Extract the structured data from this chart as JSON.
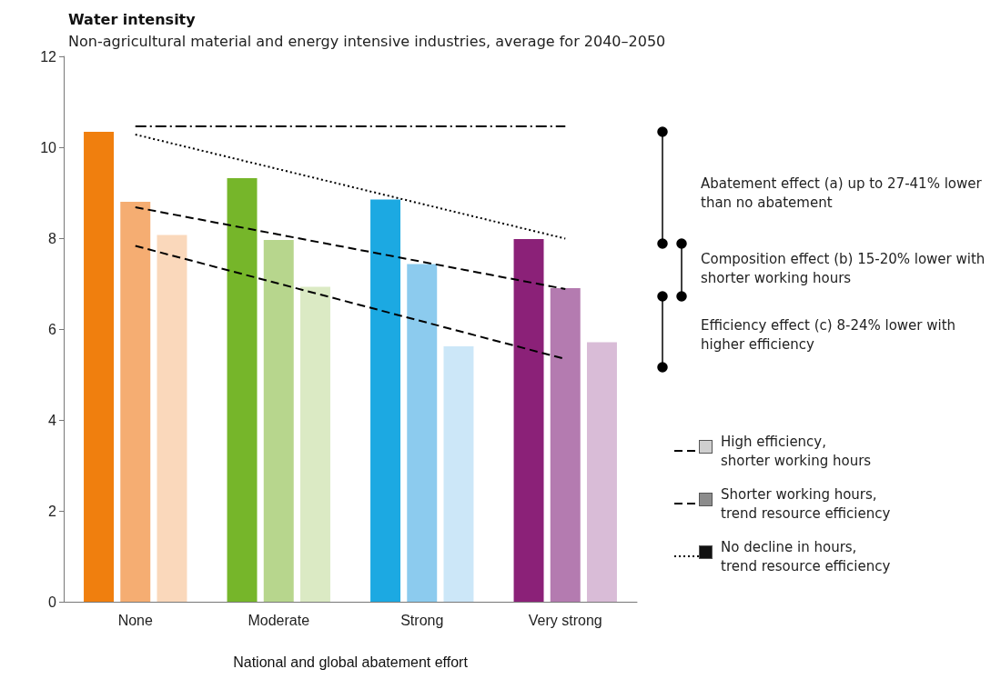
{
  "chart_data": {
    "title": "Water intensity",
    "subtitle": "Non-agricultural material and energy intensive industries, average for 2040–2050",
    "xlabel": "National and global abatement effort",
    "categories": [
      "None",
      "Moderate",
      "Strong",
      "Very strong"
    ],
    "series": [
      {
        "type": "line",
        "name": "High efficiency, shorter working hours",
        "color": "#000000",
        "line_style": "dashed",
        "values": [
          7.83,
          null,
          null,
          5.34
        ]
      },
      {
        "type": "line",
        "name": "Shorter working hours, trend resource efficiency",
        "color": "#000000",
        "line_style": "dashed",
        "values": [
          8.68,
          null,
          null,
          6.88
        ]
      },
      {
        "type": "line",
        "name": "No decline in hours, trend resource efficiency",
        "color": "#000000",
        "line_style": "dotted",
        "values": [
          10.28,
          null,
          null,
          7.99
        ]
      },
      {
        "type": "line",
        "color": "#000000",
        "line_style": "dashdot",
        "values": [
          10.46,
          null,
          null,
          10.46
        ]
      },
      {
        "colors": [
          "#f07f0e",
          "#76b62a",
          "#1ca9e2",
          "#8b2178"
        ],
        "values": [
          10.34,
          9.32,
          8.85,
          7.98
        ]
      },
      {
        "colors": [
          "#f5ad72",
          "#b7d68d",
          "#8ccbee",
          "#b47bb0"
        ],
        "values": [
          8.8,
          7.96,
          7.43,
          6.9
        ]
      },
      {
        "colors": [
          "#fad8bb",
          "#dbeac4",
          "#cce7f8",
          "#d9bcd7"
        ],
        "values": [
          8.07,
          6.93,
          5.62,
          5.71
        ]
      }
    ],
    "ylim": [
      0,
      12
    ],
    "yticks": [
      0,
      2,
      4,
      6,
      8,
      10,
      12
    ],
    "grid": false,
    "type": "bar",
    "legend": "bottom right",
    "marker": "none",
    "annotations": [
      "Abatement effect (a) up to 27-41% lower than no abatement",
      "Composition effect (b) 15-20% lower with shorter working hours",
      "Efficiency effect (c) 8-24% lower with higher efficiency"
    ]
  }
}
